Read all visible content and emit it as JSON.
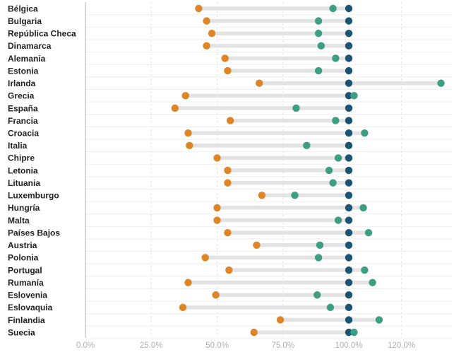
{
  "colors": {
    "orange": "#de8528",
    "green": "#3d9e82",
    "navy": "#1b5474",
    "range_bar": "#e3e3e3",
    "gridline": "#e6e6e6",
    "axis_line": "#bfbfbf",
    "row_separator": "#eeeeee"
  },
  "chart_data": {
    "type": "dumbbell",
    "title": "",
    "xlabel": "",
    "ylabel": "",
    "xlim": [
      0,
      138
    ],
    "x_ticks": [
      0,
      25,
      50,
      75,
      100,
      120
    ],
    "x_tick_labels": [
      "0.0%",
      "25.0%",
      "50.0%",
      "75.0%",
      "100.0%",
      "120.0%"
    ],
    "categories": [
      "Bélgica",
      "Bulgaria",
      "República Checa",
      "Dinamarca",
      "Alemania",
      "Estonia",
      "Irlanda",
      "Grecia",
      "España",
      "Francia",
      "Croacia",
      "Italia",
      "Chipre",
      "Letonia",
      "Lituania",
      "Luxemburgo",
      "Hungría",
      "Malta",
      "Países Bajos",
      "Austria",
      "Polonia",
      "Portugal",
      "Rumanía",
      "Eslovenia",
      "Eslovaquia",
      "Finlandia",
      "Suecia"
    ],
    "series": [
      {
        "name": "orange",
        "color_key": "orange",
        "values": [
          43,
          46,
          48,
          46,
          53,
          54,
          66,
          38,
          34,
          55,
          39,
          39.5,
          50,
          54,
          54,
          67,
          50,
          50,
          54,
          65,
          45.5,
          54.5,
          39,
          49.5,
          37,
          74,
          64
        ]
      },
      {
        "name": "green",
        "color_key": "green",
        "values": [
          94,
          88.5,
          88.5,
          89.5,
          95,
          88.5,
          135,
          102,
          80,
          95,
          106,
          84,
          96,
          92.5,
          94,
          79.5,
          105.5,
          96,
          107.5,
          89,
          88.5,
          106,
          109,
          88,
          93,
          111.5,
          102
        ]
      },
      {
        "name": "navy",
        "color_key": "navy",
        "values": [
          100,
          100,
          100,
          100,
          100,
          100,
          100,
          100,
          100,
          100,
          100,
          100,
          100,
          100,
          100,
          100,
          100,
          100,
          100,
          100,
          100,
          100,
          100,
          100,
          100,
          100,
          100
        ]
      }
    ],
    "grid": true
  }
}
